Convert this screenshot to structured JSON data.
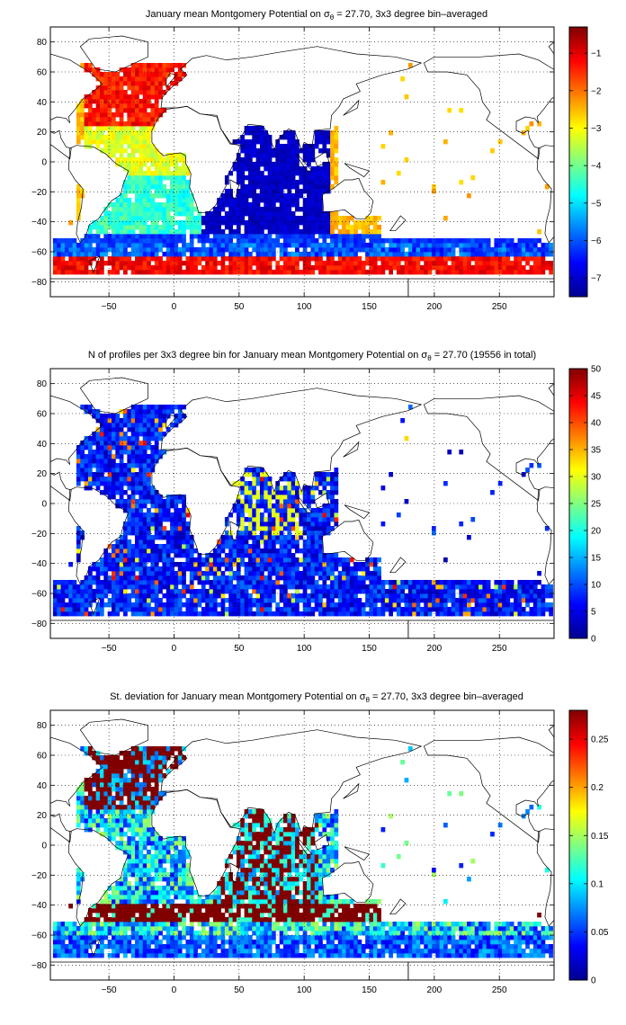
{
  "chart_data": [
    {
      "type": "heatmap",
      "title": "January mean Montgomery Potential on σθ = 27.70, 3x3 degree bin–averaged",
      "title_parts": {
        "pre": "January mean Montgomery Potential on ",
        "sym": "σ",
        "sub": "θ",
        "post": " = 27.70, 3x3 degree bin–averaged"
      },
      "xlim": [
        -95,
        292
      ],
      "ylim": [
        -90,
        90
      ],
      "xticks": [
        -50,
        0,
        50,
        100,
        150,
        200,
        250
      ],
      "yticks": [
        80,
        60,
        40,
        20,
        0,
        -20,
        -40,
        -60,
        -80
      ],
      "grid": true,
      "colorbar": {
        "min": -7.5,
        "max": -0.3,
        "ticks": [
          -1,
          -2,
          -3,
          -4,
          -5,
          -6,
          -7
        ],
        "colormap": "jet"
      },
      "fields": {
        "atlantic_north": -1.8,
        "atlantic_tropical": -3.6,
        "atlantic_south": -4.9,
        "indian": -7.2,
        "southern_band": -6.6,
        "acc_south_edge": -1.6
      }
    },
    {
      "type": "heatmap",
      "title": "N of profiles per 3x3 degree bin for January mean Montgomery Potential on σθ = 27.70 (19556 in total)",
      "title_parts": {
        "pre": "N of profiles per 3x3 degree bin for January mean Montgomery Potential on ",
        "sym": "σ",
        "sub": "θ",
        "post": " = 27.70 (19556 in total)"
      },
      "total_profiles": 19556,
      "xlim": [
        -95,
        292
      ],
      "ylim": [
        -90,
        90
      ],
      "xticks": [
        -50,
        0,
        50,
        100,
        150,
        200,
        250
      ],
      "yticks": [
        80,
        60,
        40,
        20,
        0,
        -20,
        -40,
        -60,
        -80
      ],
      "grid": true,
      "colorbar": {
        "min": 0,
        "max": 50,
        "ticks": [
          50,
          45,
          40,
          35,
          30,
          25,
          20,
          15,
          10,
          5,
          0
        ],
        "colormap": "jet"
      },
      "fields": {
        "typical": 8,
        "north_atlantic_hotspots": 45,
        "indian_hotspots": 30
      }
    },
    {
      "type": "heatmap",
      "title": "St. deviation for January mean Montgomery Potential on σθ = 27.70, 3x3 degree bin–averaged",
      "title_parts": {
        "pre": "St. deviation for January mean Montgomery Potential on ",
        "sym": "σ",
        "sub": "θ",
        "post": " = 27.70, 3x3 degree bin–averaged"
      },
      "xlim": [
        -95,
        292
      ],
      "ylim": [
        -90,
        90
      ],
      "xticks": [
        -50,
        0,
        50,
        100,
        150,
        200,
        250
      ],
      "yticks": [
        80,
        60,
        40,
        20,
        0,
        -20,
        -40,
        -60,
        -80
      ],
      "grid": true,
      "colorbar": {
        "min": 0,
        "max": 0.28,
        "ticks": [
          0.25,
          0.2,
          0.15,
          0.1,
          0.05,
          0
        ],
        "colormap": "jet"
      },
      "fields": {
        "high_variability": 0.28,
        "moderate": 0.12,
        "low": 0.03
      }
    }
  ]
}
